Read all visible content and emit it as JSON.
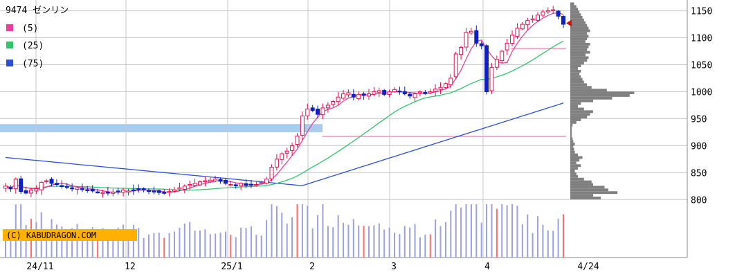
{
  "chart_data": {
    "type": "candlestick",
    "ticker": "9474 ゼンリン",
    "watermark": "(C) KABUDRAGON.COM",
    "y_ticks": [
      800,
      850,
      900,
      950,
      1000,
      1050,
      1100,
      1150
    ],
    "ylim": [
      785,
      1170
    ],
    "x_labels": [
      "24/11",
      "12",
      "25/1",
      "2",
      "3",
      "4",
      "4/24"
    ],
    "legend": [
      {
        "label": "(5)",
        "color": "#e8409a"
      },
      {
        "label": "(25)",
        "color": "#33c46a"
      },
      {
        "label": "(75)",
        "color": "#2b4fd6"
      }
    ],
    "colors": {
      "up_candle": "#e01050",
      "down_candle": "#1020c0",
      "ma5": "#e8409a",
      "ma25": "#33c46a",
      "ma75": "#2b4fd6",
      "volume": "#9aa0e0",
      "volume_highlight": "#ff6b6b",
      "profile": "#808080",
      "resistance_band": "#a8ccf0",
      "support_line": "#f7a8c8",
      "current_marker": "#d01010",
      "watermark_bg": "#ffb000",
      "grid": "#c8c8c8"
    },
    "closes": [
      825,
      820,
      838,
      815,
      812,
      818,
      820,
      832,
      835,
      830,
      828,
      826,
      824,
      820,
      822,
      820,
      818,
      816,
      814,
      813,
      812,
      814,
      815,
      818,
      816,
      818,
      820,
      818,
      815,
      814,
      813,
      812,
      815,
      818,
      822,
      825,
      828,
      830,
      833,
      835,
      836,
      838,
      834,
      830,
      828,
      826,
      830,
      826,
      828,
      828,
      832,
      838,
      860,
      875,
      885,
      890,
      900,
      918,
      955,
      968,
      965,
      958,
      970,
      975,
      982,
      990,
      996,
      998,
      990,
      995,
      993,
      996,
      1000,
      1002,
      995,
      1000,
      1004,
      1000,
      996,
      992,
      996,
      1000,
      998,
      1000,
      1005,
      1008,
      1015,
      1025,
      1070,
      1082,
      1110,
      1112,
      1090,
      1085,
      1000,
      1045,
      1060,
      1075,
      1090,
      1105,
      1118,
      1125,
      1132,
      1135,
      1142,
      1148,
      1150,
      1152,
      1140,
      1125
    ],
    "profile_bins": [
      {
        "price": 803,
        "w": 40
      },
      {
        "price": 808,
        "w": 30
      },
      {
        "price": 813,
        "w": 62
      },
      {
        "price": 818,
        "w": 50
      },
      {
        "price": 823,
        "w": 45
      },
      {
        "price": 828,
        "w": 30
      },
      {
        "price": 833,
        "w": 28
      },
      {
        "price": 838,
        "w": 18
      },
      {
        "price": 843,
        "w": 10
      },
      {
        "price": 848,
        "w": 8
      },
      {
        "price": 853,
        "w": 6
      },
      {
        "price": 858,
        "w": 10
      },
      {
        "price": 863,
        "w": 14
      },
      {
        "price": 868,
        "w": 8
      },
      {
        "price": 873,
        "w": 12
      },
      {
        "price": 878,
        "w": 16
      },
      {
        "price": 883,
        "w": 10
      },
      {
        "price": 888,
        "w": 6
      },
      {
        "price": 893,
        "w": 5
      },
      {
        "price": 898,
        "w": 4
      },
      {
        "price": 903,
        "w": 6
      },
      {
        "price": 908,
        "w": 4
      },
      {
        "price": 913,
        "w": 3
      },
      {
        "price": 918,
        "w": 2
      },
      {
        "price": 923,
        "w": 2
      },
      {
        "price": 928,
        "w": 2
      },
      {
        "price": 933,
        "w": 2
      },
      {
        "price": 938,
        "w": 3
      },
      {
        "price": 943,
        "w": 8
      },
      {
        "price": 948,
        "w": 14
      },
      {
        "price": 953,
        "w": 22
      },
      {
        "price": 958,
        "w": 26
      },
      {
        "price": 963,
        "w": 30
      },
      {
        "price": 968,
        "w": 18
      },
      {
        "price": 973,
        "w": 10
      },
      {
        "price": 978,
        "w": 14
      },
      {
        "price": 983,
        "w": 30
      },
      {
        "price": 988,
        "w": 55
      },
      {
        "price": 993,
        "w": 78
      },
      {
        "price": 998,
        "w": 84
      },
      {
        "price": 1003,
        "w": 48
      },
      {
        "price": 1008,
        "w": 28
      },
      {
        "price": 1013,
        "w": 22
      },
      {
        "price": 1018,
        "w": 18
      },
      {
        "price": 1023,
        "w": 16
      },
      {
        "price": 1028,
        "w": 14
      },
      {
        "price": 1033,
        "w": 12
      },
      {
        "price": 1038,
        "w": 14
      },
      {
        "price": 1043,
        "w": 10
      },
      {
        "price": 1048,
        "w": 14
      },
      {
        "price": 1053,
        "w": 18
      },
      {
        "price": 1058,
        "w": 22
      },
      {
        "price": 1063,
        "w": 24
      },
      {
        "price": 1068,
        "w": 20
      },
      {
        "price": 1073,
        "w": 26
      },
      {
        "price": 1078,
        "w": 22
      },
      {
        "price": 1083,
        "w": 24
      },
      {
        "price": 1088,
        "w": 26
      },
      {
        "price": 1093,
        "w": 20
      },
      {
        "price": 1098,
        "w": 22
      },
      {
        "price": 1103,
        "w": 24
      },
      {
        "price": 1108,
        "w": 22
      },
      {
        "price": 1113,
        "w": 26
      },
      {
        "price": 1118,
        "w": 24
      },
      {
        "price": 1123,
        "w": 22
      },
      {
        "price": 1128,
        "w": 20
      },
      {
        "price": 1133,
        "w": 18
      },
      {
        "price": 1138,
        "w": 16
      },
      {
        "price": 1143,
        "w": 14
      },
      {
        "price": 1148,
        "w": 12
      },
      {
        "price": 1153,
        "w": 10
      },
      {
        "price": 1158,
        "w": 8
      },
      {
        "price": 1163,
        "w": 5
      }
    ],
    "resistance_band": [
      925,
      940
    ],
    "support_level": 917,
    "recent_high_level": 1080,
    "current_price": 1127
  }
}
